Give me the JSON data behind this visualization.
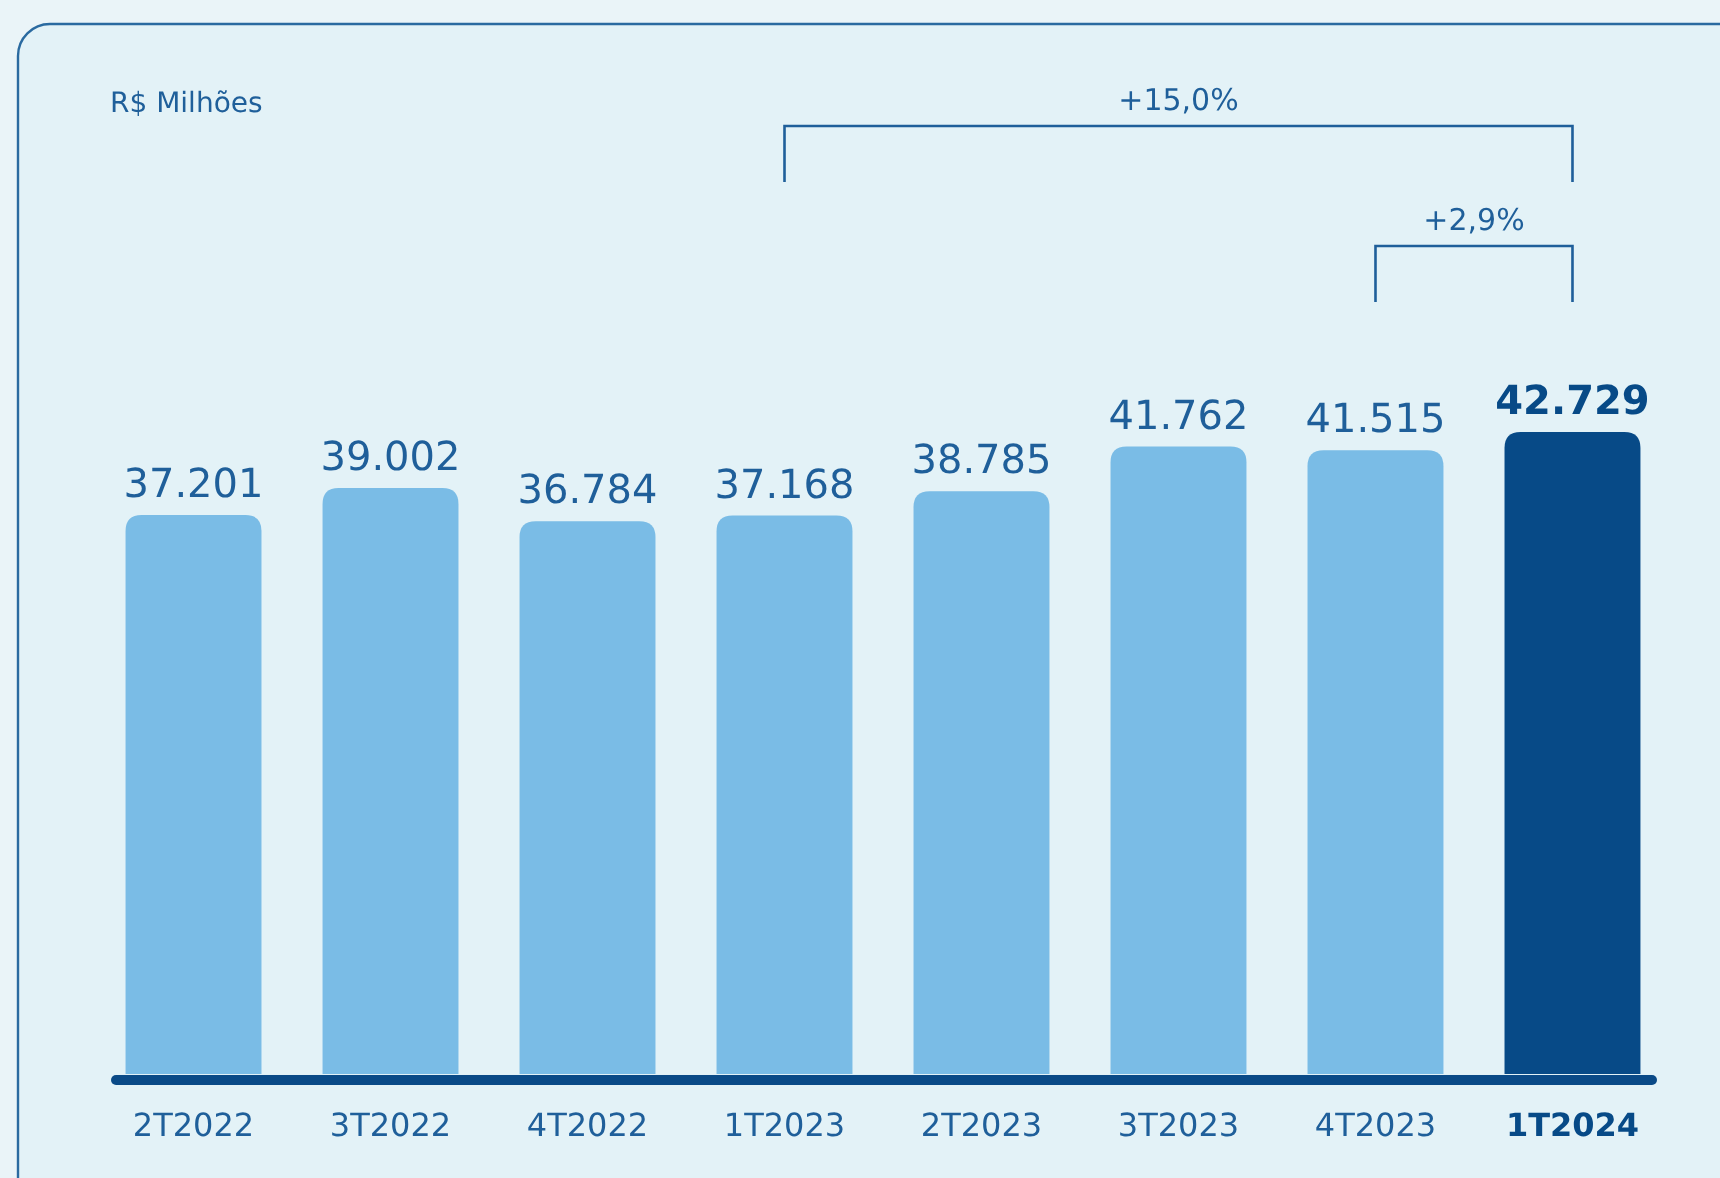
{
  "chart_data": {
    "type": "bar",
    "categories": [
      "2T2022",
      "3T2022",
      "4T2022",
      "1T2023",
      "2T2023",
      "3T2023",
      "4T2023",
      "1T2024"
    ],
    "values": [
      37201,
      39002,
      36784,
      37168,
      38785,
      41762,
      41515,
      42729
    ],
    "colors": [
      "#7abce6",
      "#7abce6",
      "#7abce6",
      "#7abce6",
      "#7abce6",
      "#7abce6",
      "#7abce6",
      "#074a87"
    ],
    "value_labels": [
      "37.201",
      "39.002",
      "36.784",
      "37.168",
      "38.785",
      "41.762",
      "41.515",
      "42.729"
    ],
    "ylim": [
      0,
      42729
    ],
    "annotations": [
      "R$ Milhões",
      "+15,0%",
      "+2,9%"
    ]
  }
}
